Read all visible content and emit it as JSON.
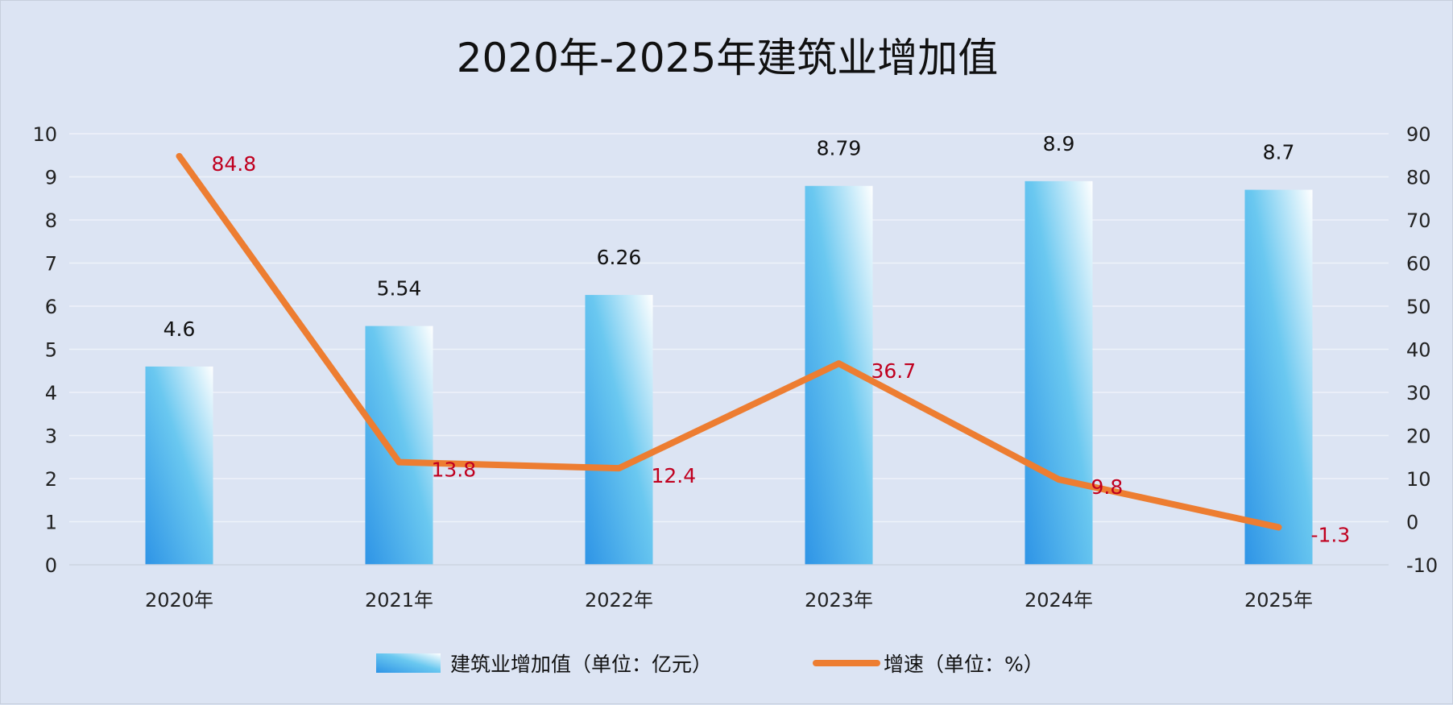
{
  "chart_data": {
    "type": "bar",
    "title": "2020年-2025年建筑业增加值",
    "categories": [
      "2020年",
      "2021年",
      "2022年",
      "2023年",
      "2024年",
      "2025年"
    ],
    "series": [
      {
        "name": "建筑业增加值（单位：亿元）",
        "type": "bar",
        "axis": "left",
        "values": [
          4.6,
          5.54,
          6.26,
          8.79,
          8.9,
          8.7
        ],
        "labels": [
          "4.6",
          "5.54",
          "6.26",
          "8.79",
          "8.9",
          "8.7"
        ]
      },
      {
        "name": "增速（单位：%）",
        "type": "line",
        "axis": "right",
        "values": [
          84.8,
          13.8,
          12.4,
          36.7,
          9.8,
          -1.3
        ],
        "labels": [
          "84.8",
          "13.8",
          "12.4",
          "36.7",
          "9.8",
          "-1.3"
        ]
      }
    ],
    "y_left": {
      "ylim": [
        0,
        10
      ],
      "ticks": [
        "0",
        "1",
        "2",
        "3",
        "4",
        "5",
        "6",
        "7",
        "8",
        "9",
        "10"
      ]
    },
    "y_right": {
      "ylim": [
        -10,
        90
      ],
      "ticks": [
        "-10",
        "0",
        "10",
        "20",
        "30",
        "40",
        "50",
        "60",
        "70",
        "80",
        "90"
      ]
    },
    "grid": true,
    "legend": "bottom",
    "colors": {
      "bar_dark": "#2e94e6",
      "bar_mid": "#6ac8f0",
      "bar_light": "#ffffff",
      "line": "#ed7d31",
      "line_label": "#c0001f",
      "background": "#dce4f3"
    }
  }
}
